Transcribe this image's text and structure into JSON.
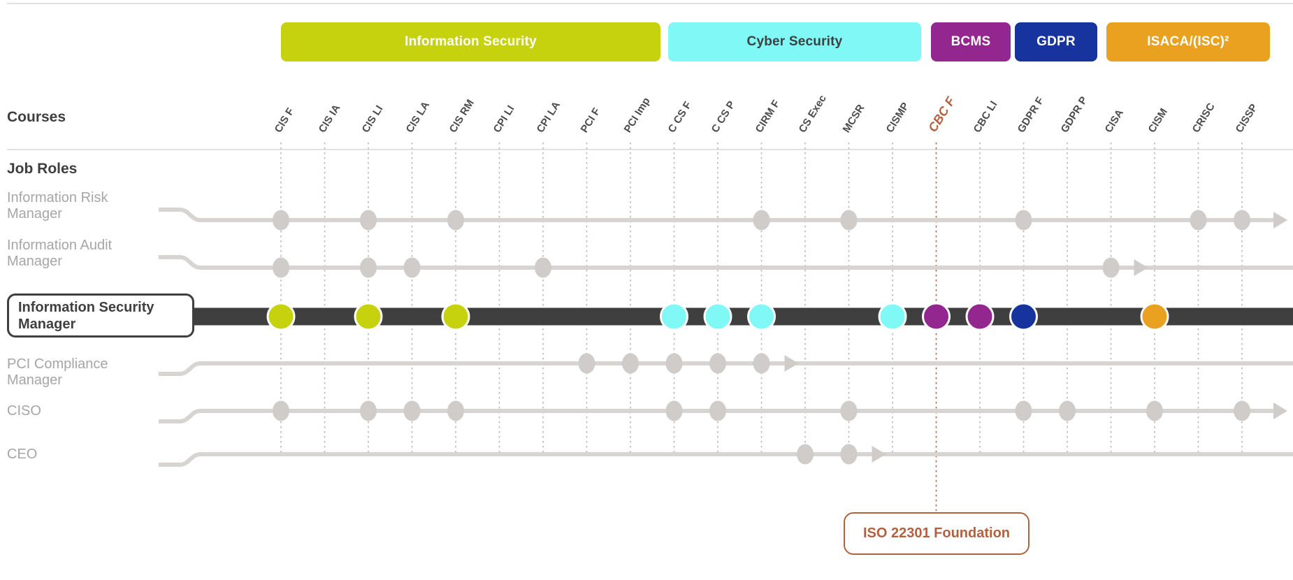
{
  "colors": {
    "lime": "#c6d20e",
    "cyan": "#7ff8f6",
    "purple": "#93278f",
    "navy": "#17349e",
    "orange": "#e9a11f",
    "rust": "#b2613f",
    "dark": "#3f3f3f",
    "line": "#d7d4d2",
    "dot": "#cfccca",
    "label": "#a8a6a4",
    "header": "#4c4c4c",
    "divider": "#e2e1e0"
  },
  "sections": {
    "courses_label": "Courses",
    "job_roles_label": "Job Roles"
  },
  "legend_bars": [
    {
      "label": "Information Security",
      "color": "lime",
      "text_color": "#ffffff"
    },
    {
      "label": "Cyber Security",
      "color": "cyan",
      "text_color": "#3f3f3f"
    },
    {
      "label": "BCMS",
      "color": "purple",
      "text_color": "#ffffff"
    },
    {
      "label": "GDPR",
      "color": "navy",
      "text_color": "#ffffff"
    },
    {
      "label": "ISACA/(ISC)²",
      "color": "orange",
      "text_color": "#ffffff"
    }
  ],
  "columns": [
    {
      "label": "CIS F"
    },
    {
      "label": "CIS IA"
    },
    {
      "label": "CIS LI"
    },
    {
      "label": "CIS LA"
    },
    {
      "label": "CIS RM"
    },
    {
      "label": "CPI LI"
    },
    {
      "label": "CPI LA"
    },
    {
      "label": "PCI F"
    },
    {
      "label": "PCI Imp"
    },
    {
      "label": "C CS F"
    },
    {
      "label": "C CS P"
    },
    {
      "label": "CIRM F"
    },
    {
      "label": "CS Exec"
    },
    {
      "label": "MCSR"
    },
    {
      "label": "CISMP"
    },
    {
      "label": "CBC F",
      "highlighted": true
    },
    {
      "label": "CBC LI"
    },
    {
      "label": "GDPR F"
    },
    {
      "label": "GDPR P"
    },
    {
      "label": "CISA"
    },
    {
      "label": "CISM"
    },
    {
      "label": "CRISC"
    },
    {
      "label": "CISSP"
    }
  ],
  "rows": [
    {
      "label": "Information Risk Manager",
      "dots": [
        "CIS F",
        "CIS LI",
        "CIS RM",
        "CIRM F",
        "MCSR",
        "GDPR F",
        "CRISC",
        "CISSP"
      ],
      "arrow": "end"
    },
    {
      "label": "Information Audit Manager",
      "dots": [
        "CIS F",
        "CIS LI",
        "CIS LA",
        "CPI LA",
        "CISA"
      ],
      "arrow": "CISA"
    },
    {
      "label": "Information Security Manager",
      "selected": true,
      "dots": [
        {
          "c": "CIS F",
          "g": "lime"
        },
        {
          "c": "CIS LI",
          "g": "lime"
        },
        {
          "c": "CIS RM",
          "g": "lime"
        },
        {
          "c": "C CS F",
          "g": "cyan"
        },
        {
          "c": "C CS P",
          "g": "cyan"
        },
        {
          "c": "CIRM F",
          "g": "cyan"
        },
        {
          "c": "CISMP",
          "g": "cyan"
        },
        {
          "c": "CBC F",
          "g": "purple"
        },
        {
          "c": "CBC LI",
          "g": "purple"
        },
        {
          "c": "GDPR F",
          "g": "navy"
        },
        {
          "c": "CISM",
          "g": "orange"
        }
      ]
    },
    {
      "label": "PCI Compliance Manager",
      "dots": [
        "PCI F",
        "PCI Imp",
        "C CS F",
        "C CS P",
        "CIRM F"
      ],
      "arrow": "CIRM F"
    },
    {
      "label": "CISO",
      "dots": [
        "CIS F",
        "CIS LI",
        "CIS LA",
        "CIS RM",
        "C CS F",
        "C CS P",
        "MCSR",
        "GDPR F",
        "GDPR P",
        "CISM",
        "CISSP"
      ],
      "arrow": "end"
    },
    {
      "label": "CEO",
      "dots": [
        "CS Exec",
        "MCSR"
      ],
      "arrow": "MCSR"
    }
  ],
  "callout": {
    "label": "ISO 22301 Foundation",
    "column": "CBC F"
  }
}
